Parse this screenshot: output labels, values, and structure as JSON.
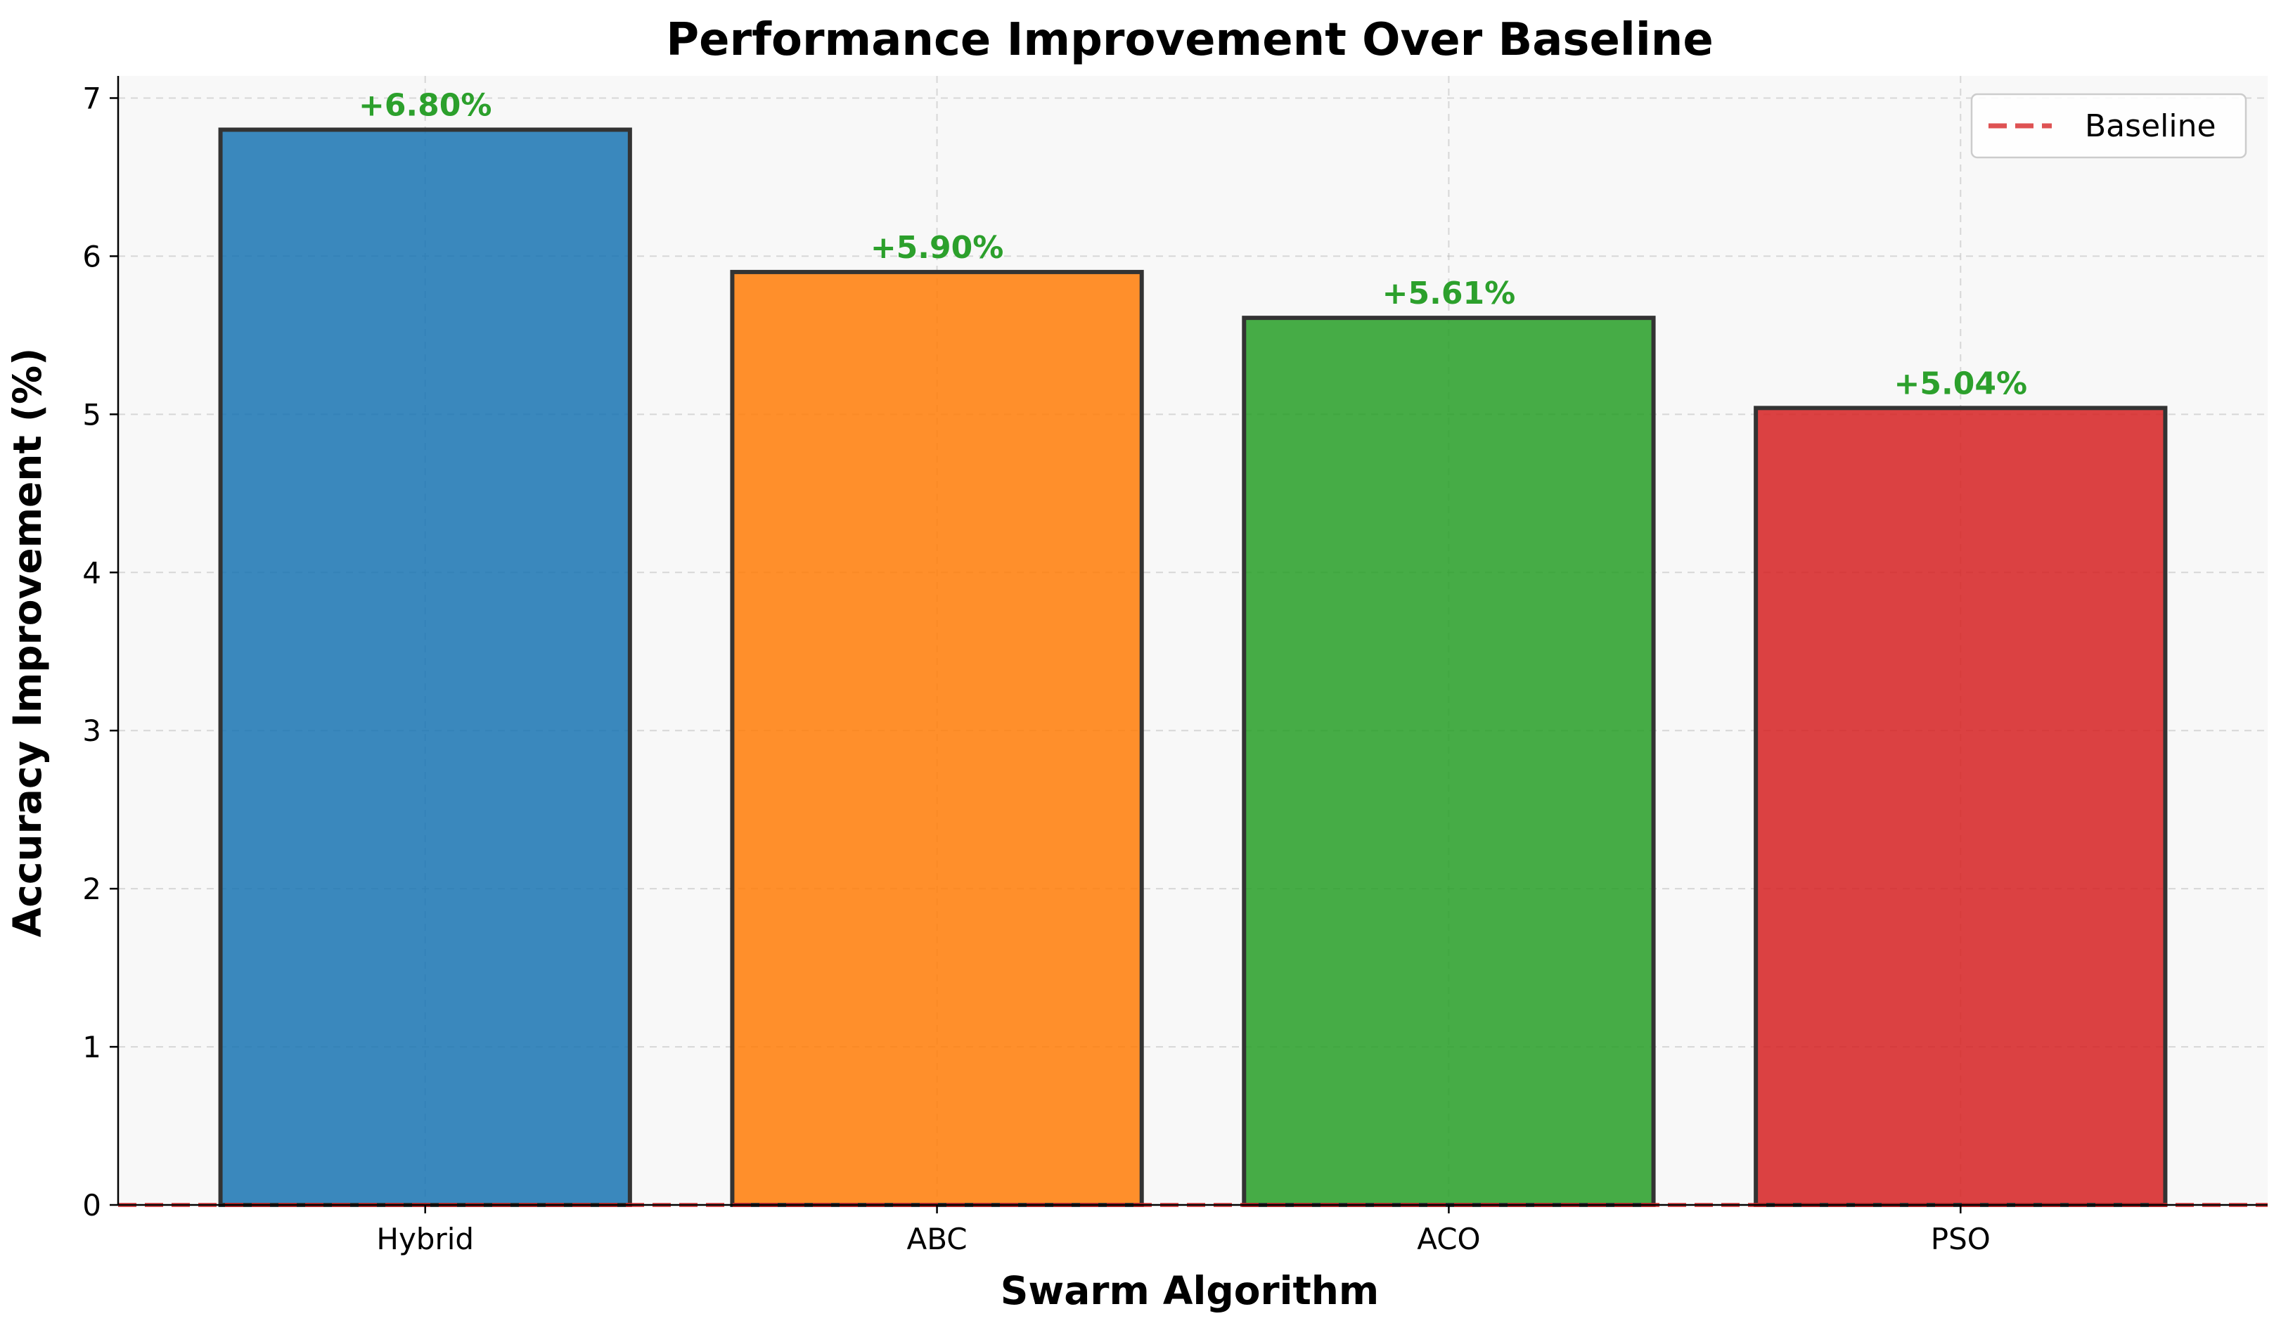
{
  "chart_data": {
    "type": "bar",
    "title": "Performance Improvement Over Baseline",
    "xlabel": "Swarm Algorithm",
    "ylabel": "Accuracy Improvement (%)",
    "categories": [
      "Hybrid",
      "ABC",
      "ACO",
      "PSO"
    ],
    "values": [
      6.8,
      5.9,
      5.61,
      5.04
    ],
    "data_labels": [
      "+6.80%",
      "+5.90%",
      "+5.61%",
      "+5.04%"
    ],
    "bar_colors": [
      "#1f77b4",
      "#ff7f0e",
      "#2ca02c",
      "#d62728"
    ],
    "bar_edge_color": "#333333",
    "label_color": "#2ca02c",
    "ylim": [
      0,
      7.14
    ],
    "yticks": [
      0,
      1,
      2,
      3,
      4,
      5,
      6,
      7
    ],
    "grid": true,
    "plot_background": "#f8f8f8",
    "reference_line": {
      "name": "Baseline",
      "y": 0,
      "style": "dashed",
      "color": "#d62728"
    },
    "legend": {
      "placement": "top-right",
      "entries": [
        "Baseline"
      ]
    }
  }
}
